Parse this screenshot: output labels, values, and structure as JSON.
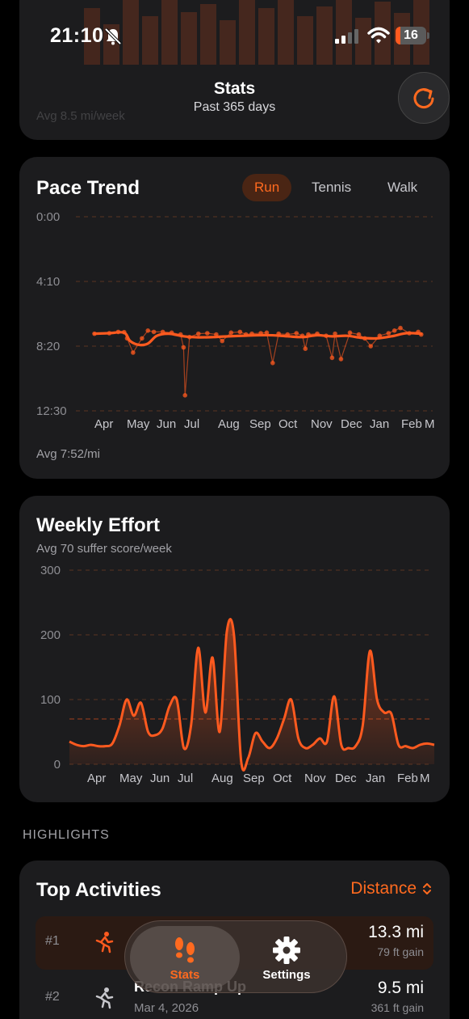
{
  "status_bar": {
    "time": "21:10",
    "battery": "16",
    "battery_level": 0.16
  },
  "header": {
    "title": "Stats",
    "subtitle": "Past 365 days",
    "top_card_avg": "Avg 8.5 mi/week"
  },
  "pace_trend": {
    "title": "Pace Trend",
    "tabs": [
      {
        "label": "Run",
        "active": true
      },
      {
        "label": "Tennis",
        "active": false
      },
      {
        "label": "Walk",
        "active": false
      }
    ],
    "avg": "Avg 7:52/mi",
    "accent_color": "#ff5a1f",
    "chart_data": {
      "type": "line",
      "y_ticks": [
        "0:00",
        "4:10",
        "8:20",
        "12:30"
      ],
      "y_range_seconds_per_mi": [
        0,
        750
      ],
      "y_inverted": false,
      "x_ticks": [
        "Apr",
        "May",
        "Jun",
        "Jul",
        "Aug",
        "Sep",
        "Oct",
        "Nov",
        "Dec",
        "Jan",
        "Feb",
        "M"
      ],
      "series": [
        {
          "name": "",
          "x_month_index": [
            0.0,
            0.5,
            0.8,
            1.0,
            1.1,
            1.3,
            1.6,
            1.8,
            2.0,
            2.3,
            2.6,
            2.9,
            3.0,
            3.05,
            3.2,
            3.5,
            3.8,
            4.1,
            4.3,
            4.6,
            4.9,
            5.1,
            5.3,
            5.6,
            5.8,
            6.0,
            6.2,
            6.5,
            6.8,
            7.0,
            7.1,
            7.2,
            7.5,
            7.8,
            8.0,
            8.1,
            8.3,
            8.6,
            8.9,
            9.1,
            9.3,
            9.6,
            9.9,
            10.1,
            10.3,
            10.6,
            10.9,
            11.0
          ],
          "pace_seconds": [
            452,
            450,
            445,
            446,
            470,
            525,
            470,
            440,
            445,
            445,
            448,
            455,
            505,
            690,
            465,
            452,
            450,
            455,
            480,
            448,
            445,
            455,
            452,
            450,
            448,
            565,
            452,
            455,
            450,
            460,
            510,
            455,
            452,
            460,
            545,
            452,
            550,
            448,
            455,
            470,
            500,
            460,
            450,
            440,
            430,
            450,
            445,
            455
          ]
        },
        {
          "name": "",
          "x_month_index": [
            0.0,
            0.5,
            1.0,
            1.2,
            1.5,
            1.8,
            2.1,
            2.5,
            3.0,
            3.5,
            4.0,
            4.5,
            5.0,
            5.5,
            6.0,
            6.5,
            7.0,
            7.5,
            8.0,
            8.5,
            9.0,
            9.5,
            10.0,
            10.5,
            11.0
          ],
          "pace_seconds": [
            452,
            450,
            448,
            480,
            495,
            490,
            460,
            452,
            462,
            466,
            465,
            462,
            460,
            458,
            458,
            462,
            465,
            458,
            462,
            460,
            468,
            470,
            462,
            450,
            452
          ]
        }
      ]
    }
  },
  "weekly_effort": {
    "title": "Weekly Effort",
    "subtitle": "Avg 70 suffer score/week",
    "accent_color": "#ff5a1f",
    "chart_data": {
      "type": "area",
      "y_ticks": [
        "300",
        "200",
        "100",
        "0"
      ],
      "ylim": [
        0,
        300
      ],
      "average": 70,
      "x_ticks": [
        "Apr",
        "May",
        "Jun",
        "Jul",
        "Aug",
        "Sep",
        "Oct",
        "Nov",
        "Dec",
        "Jan",
        "Feb",
        "M"
      ],
      "series": [
        {
          "name": "",
          "x_week_index": [
            0,
            1,
            2,
            3,
            4,
            5,
            6,
            7,
            8,
            9,
            10,
            11,
            12,
            13,
            14,
            15,
            16,
            17,
            18,
            19,
            20,
            21,
            22,
            23,
            24,
            25,
            26,
            27,
            28,
            29,
            30,
            31,
            32,
            33,
            34,
            35,
            36,
            37,
            38,
            39,
            40,
            41,
            42,
            43,
            44,
            45,
            46,
            47,
            48,
            49,
            50,
            51
          ],
          "values": [
            35,
            30,
            28,
            30,
            28,
            28,
            32,
            60,
            100,
            75,
            95,
            50,
            45,
            55,
            90,
            100,
            25,
            60,
            180,
            80,
            165,
            50,
            205,
            200,
            5,
            10,
            48,
            35,
            25,
            40,
            70,
            100,
            40,
            25,
            30,
            40,
            35,
            105,
            30,
            25,
            28,
            60,
            175,
            100,
            80,
            78,
            30,
            28,
            25,
            30,
            32,
            30
          ]
        }
      ]
    }
  },
  "highlights": {
    "header": "HIGHLIGHTS",
    "top_activities": {
      "title": "Top Activities",
      "sort_label": "Distance",
      "rows": [
        {
          "rank": "#1",
          "name": "",
          "date": "",
          "distance": "13.3 mi",
          "gain": "79 ft gain"
        },
        {
          "rank": "#2",
          "name": "Recon Ramp Up",
          "date": "Mar 4, 2026",
          "distance": "9.5 mi",
          "gain": "361 ft gain"
        }
      ]
    }
  },
  "tab_bar": {
    "tabs": [
      {
        "label": "Stats",
        "icon": "footprints-icon",
        "active": true
      },
      {
        "label": "Settings",
        "icon": "gear-icon",
        "active": false
      }
    ]
  }
}
